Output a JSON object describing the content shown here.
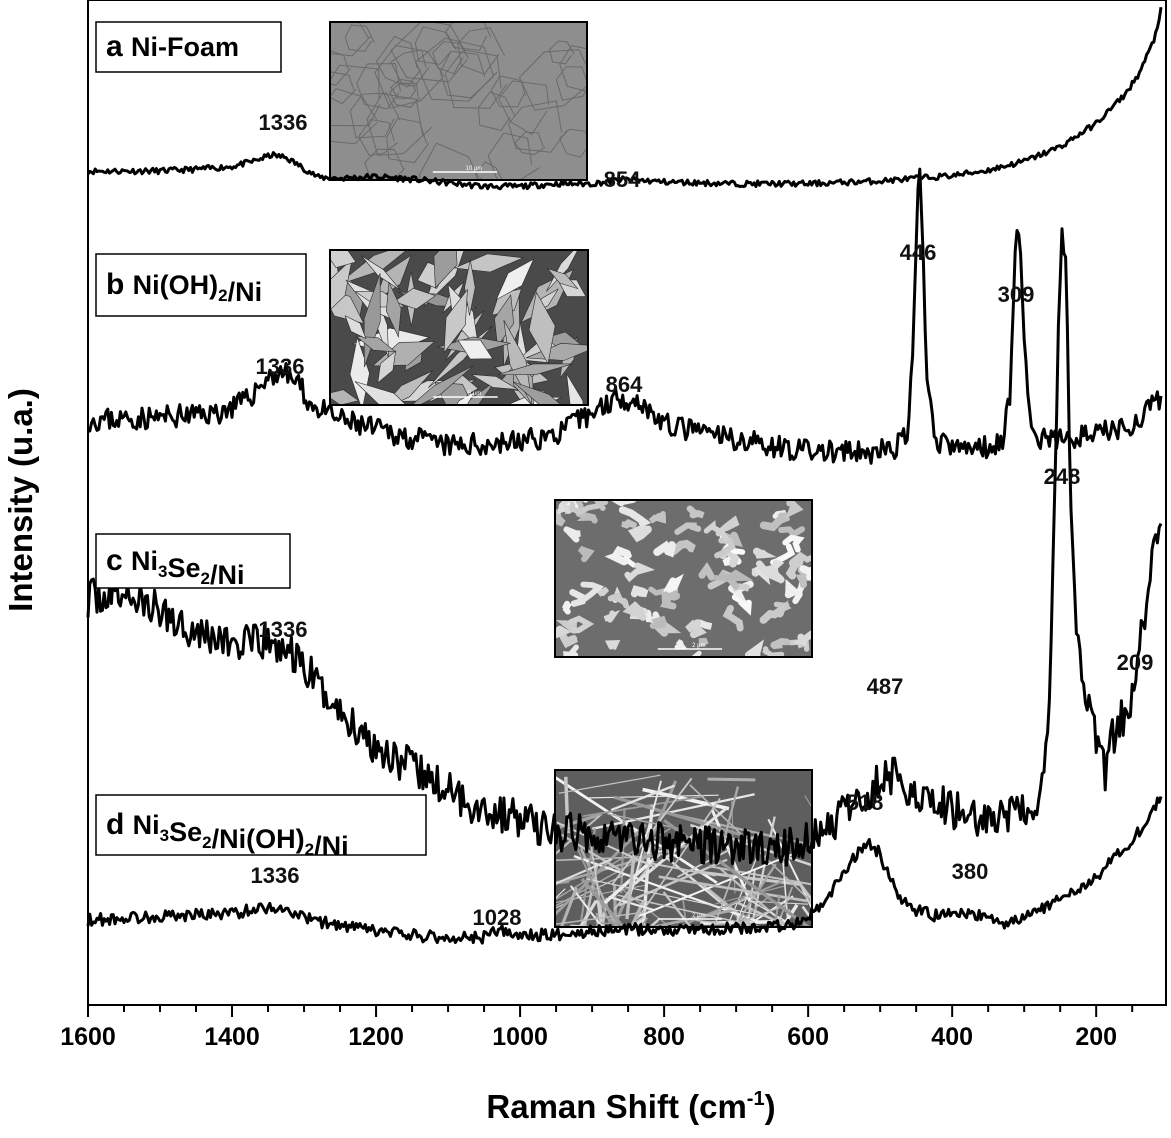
{
  "chart_data": {
    "type": "line",
    "xlabel": "Raman Shift (cm",
    "xlabel_sup": "-1",
    "xlabel_end": ")",
    "ylabel": "Intensity (u.a.)",
    "xlim": [
      1600,
      110
    ],
    "x_reversed": true,
    "xticks": [
      1600,
      1400,
      1200,
      1000,
      800,
      600,
      400,
      200
    ],
    "y_ticks_shown": false,
    "grid": false,
    "series": [
      {
        "id": "a",
        "letter": "a",
        "name": "Ni-Foam",
        "label_parts": [
          {
            "t": "Ni-Foam"
          }
        ],
        "points": [
          [
            1600,
            0.5
          ],
          [
            1500,
            0.6
          ],
          [
            1450,
            1.5
          ],
          [
            1400,
            3
          ],
          [
            1370,
            6
          ],
          [
            1345,
            9.5
          ],
          [
            1325,
            8
          ],
          [
            1300,
            2
          ],
          [
            1280,
            -3
          ],
          [
            1250,
            -3.5
          ],
          [
            1200,
            -2.5
          ],
          [
            1150,
            -4
          ],
          [
            1100,
            -6
          ],
          [
            1050,
            -8
          ],
          [
            1000,
            -8
          ],
          [
            950,
            -6.5
          ],
          [
            900,
            -6.5
          ],
          [
            854,
            -4
          ],
          [
            800,
            -5.5
          ],
          [
            700,
            -6.5
          ],
          [
            600,
            -6.5
          ],
          [
            500,
            -5
          ],
          [
            450,
            -3.5
          ],
          [
            400,
            -2
          ],
          [
            350,
            1
          ],
          [
            300,
            6
          ],
          [
            250,
            14
          ],
          [
            200,
            27
          ],
          [
            160,
            43
          ],
          [
            140,
            55
          ],
          [
            120,
            73
          ],
          [
            110,
            90
          ]
        ],
        "peaks": [
          1336,
          854
        ]
      },
      {
        "id": "b",
        "letter": "b",
        "name": "Ni(OH)2/Ni",
        "label_parts": [
          {
            "t": "Ni(OH)"
          },
          {
            "t": "2",
            "sub": true
          },
          {
            "t": "/Ni"
          }
        ],
        "points": [
          [
            1600,
            0
          ],
          [
            1500,
            0.5
          ],
          [
            1420,
            1.5
          ],
          [
            1380,
            4
          ],
          [
            1350,
            9
          ],
          [
            1330,
            10
          ],
          [
            1310,
            8
          ],
          [
            1290,
            3
          ],
          [
            1250,
            0
          ],
          [
            1200,
            -2
          ],
          [
            1100,
            -5.5
          ],
          [
            1000,
            -4.5
          ],
          [
            950,
            -3
          ],
          [
            900,
            1.5
          ],
          [
            864,
            5
          ],
          [
            830,
            3.5
          ],
          [
            800,
            -1
          ],
          [
            750,
            -2.5
          ],
          [
            700,
            -4
          ],
          [
            600,
            -6.5
          ],
          [
            520,
            -7
          ],
          [
            480,
            -6
          ],
          [
            462,
            -3
          ],
          [
            455,
            12
          ],
          [
            448,
            45
          ],
          [
            446,
            55
          ],
          [
            443,
            45
          ],
          [
            436,
            12
          ],
          [
            425,
            -4
          ],
          [
            400,
            -6
          ],
          [
            350,
            -5.5
          ],
          [
            330,
            -4
          ],
          [
            320,
            5
          ],
          [
            313,
            35
          ],
          [
            309,
            40
          ],
          [
            305,
            35
          ],
          [
            296,
            5
          ],
          [
            285,
            -4
          ],
          [
            250,
            -4
          ],
          [
            200,
            -3
          ],
          [
            150,
            -1
          ],
          [
            120,
            3
          ],
          [
            110,
            4
          ]
        ],
        "peaks": [
          1336,
          864,
          446,
          309
        ]
      },
      {
        "id": "c",
        "letter": "c",
        "name": "Ni3Se2/Ni",
        "label_parts": [
          {
            "t": "Ni"
          },
          {
            "t": "3",
            "sub": true
          },
          {
            "t": "Se"
          },
          {
            "t": "2",
            "sub": true
          },
          {
            "t": "/Ni"
          }
        ],
        "points": [
          [
            1600,
            20
          ],
          [
            1550,
            21
          ],
          [
            1500,
            17
          ],
          [
            1450,
            13
          ],
          [
            1400,
            10
          ],
          [
            1350,
            10
          ],
          [
            1320,
            8
          ],
          [
            1300,
            5
          ],
          [
            1250,
            -5
          ],
          [
            1200,
            -12
          ],
          [
            1150,
            -17
          ],
          [
            1100,
            -22
          ],
          [
            1050,
            -26
          ],
          [
            1000,
            -28
          ],
          [
            950,
            -31
          ],
          [
            900,
            -31
          ],
          [
            850,
            -32
          ],
          [
            800,
            -33
          ],
          [
            700,
            -34
          ],
          [
            650,
            -35
          ],
          [
            600,
            -33
          ],
          [
            550,
            -27
          ],
          [
            520,
            -23
          ],
          [
            490,
            -18
          ],
          [
            470,
            -20
          ],
          [
            440,
            -23
          ],
          [
            400,
            -26
          ],
          [
            350,
            -28
          ],
          [
            300,
            -27
          ],
          [
            280,
            -24
          ],
          [
            266,
            -10
          ],
          [
            258,
            40
          ],
          [
            250,
            92
          ],
          [
            246,
            100
          ],
          [
            242,
            92
          ],
          [
            235,
            40
          ],
          [
            225,
            8
          ],
          [
            215,
            -2
          ],
          [
            205,
            -8
          ],
          [
            195,
            -12
          ],
          [
            188,
            -18
          ],
          [
            180,
            -11
          ],
          [
            160,
            -5
          ],
          [
            145,
            0
          ],
          [
            135,
            15
          ],
          [
            120,
            30
          ],
          [
            110,
            33
          ]
        ],
        "peaks": [
          1336,
          487,
          248,
          209
        ]
      },
      {
        "id": "d",
        "letter": "d",
        "name": "Ni3Se2/Ni(OH)2/Ni",
        "label_parts": [
          {
            "t": "Ni"
          },
          {
            "t": "3",
            "sub": true
          },
          {
            "t": "Se"
          },
          {
            "t": "2",
            "sub": true
          },
          {
            "t": "/Ni(OH)"
          },
          {
            "t": "2",
            "sub": true
          },
          {
            "t": "/Ni"
          }
        ],
        "points": [
          [
            1600,
            0
          ],
          [
            1500,
            2
          ],
          [
            1400,
            3.5
          ],
          [
            1350,
            7
          ],
          [
            1320,
            5
          ],
          [
            1300,
            1
          ],
          [
            1250,
            -3
          ],
          [
            1200,
            -6
          ],
          [
            1150,
            -8
          ],
          [
            1100,
            -9.5
          ],
          [
            1050,
            -9
          ],
          [
            1028,
            -5
          ],
          [
            1010,
            -8.5
          ],
          [
            950,
            -7.5
          ],
          [
            900,
            -6
          ],
          [
            850,
            -5
          ],
          [
            800,
            -5
          ],
          [
            700,
            -4.5
          ],
          [
            650,
            -3.5
          ],
          [
            610,
            -2
          ],
          [
            580,
            8
          ],
          [
            555,
            22
          ],
          [
            535,
            33
          ],
          [
            518,
            42
          ],
          [
            500,
            35
          ],
          [
            485,
            20
          ],
          [
            470,
            10
          ],
          [
            450,
            5
          ],
          [
            420,
            2
          ],
          [
            400,
            3.5
          ],
          [
            380,
            4
          ],
          [
            360,
            2
          ],
          [
            340,
            -1
          ],
          [
            320,
            -2
          ],
          [
            300,
            1
          ],
          [
            270,
            7
          ],
          [
            240,
            13
          ],
          [
            200,
            23
          ],
          [
            170,
            34
          ],
          [
            140,
            47
          ],
          [
            120,
            60
          ],
          [
            110,
            65
          ]
        ],
        "peaks": [
          1336,
          1028,
          518,
          380
        ]
      }
    ],
    "annotations": [
      {
        "series": "a",
        "text": "1336",
        "x": 1336,
        "y": 25
      },
      {
        "series": "a",
        "text": "854",
        "x": 854,
        "y": 6
      },
      {
        "series": "b",
        "text": "1336",
        "x": 1336,
        "y": 24
      },
      {
        "series": "b",
        "text": "864",
        "x": 864,
        "y": 16
      },
      {
        "series": "b",
        "text": "446",
        "x": 446,
        "y": 65
      },
      {
        "series": "b",
        "text": "309",
        "x": 309,
        "y": 52
      },
      {
        "series": "c",
        "text": "1336",
        "x": 1336,
        "y": 32
      },
      {
        "series": "c",
        "text": "487",
        "x": 487,
        "y": 0
      },
      {
        "series": "c",
        "text": "248",
        "x": 248,
        "y": 113
      },
      {
        "series": "c",
        "text": "209",
        "x": 209,
        "y": 16
      },
      {
        "series": "d",
        "text": "1336",
        "x": 1336,
        "y": 24
      },
      {
        "series": "d",
        "text": "1028",
        "x": 1028,
        "y": 6
      },
      {
        "series": "d",
        "text": "518",
        "x": 518,
        "y": 62
      },
      {
        "series": "d",
        "text": "380",
        "x": 380,
        "y": 20
      }
    ],
    "insets": [
      {
        "series": "a",
        "texture": "foam",
        "scale_bar": "10 μm"
      },
      {
        "series": "b",
        "texture": "flakes",
        "scale_bar": "5 μm"
      },
      {
        "series": "c",
        "texture": "nodules",
        "scale_bar": "2 μm"
      },
      {
        "series": "d",
        "texture": "fibers",
        "scale_bar": "2 μm"
      }
    ]
  }
}
